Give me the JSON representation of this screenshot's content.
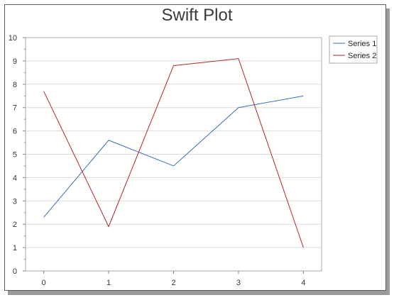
{
  "chart_data": {
    "type": "line",
    "title": "Swift Plot",
    "x": [
      0,
      1,
      2,
      3,
      4
    ],
    "xlim": [
      -0.28,
      4.28
    ],
    "ylim": [
      0,
      10
    ],
    "yticks": [
      0,
      1,
      2,
      3,
      4,
      5,
      6,
      7,
      8,
      9,
      10
    ],
    "xticks": [
      0,
      1,
      2,
      3,
      4
    ],
    "grid": "horizontal",
    "legend": "top-right",
    "series": [
      {
        "name": "Series 1",
        "color": "#3b6fb6",
        "values": [
          2.3,
          5.6,
          4.5,
          7.0,
          7.5
        ]
      },
      {
        "name": "Series 2",
        "color": "#b2262a",
        "values": [
          7.7,
          1.9,
          8.8,
          9.1,
          1.0
        ]
      }
    ]
  }
}
